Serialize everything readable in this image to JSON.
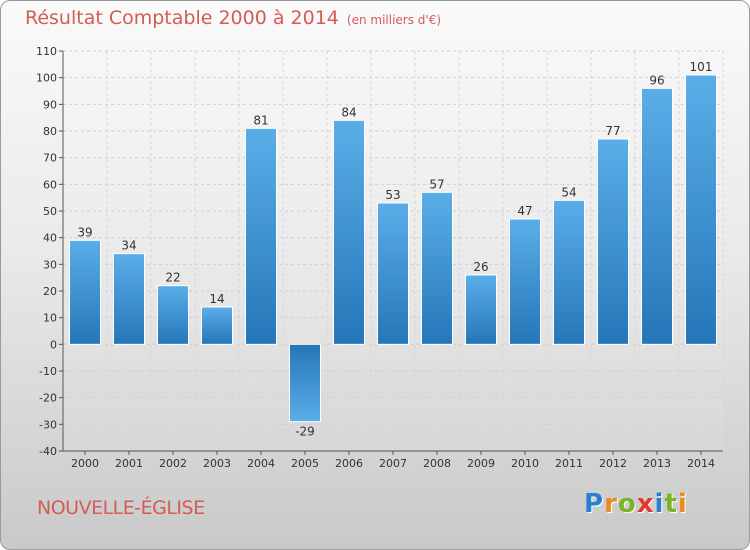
{
  "header": {
    "title": "Résultat Comptable 2000 à 2014",
    "unit_note": "(en milliers d'€)"
  },
  "footer": {
    "town": "NOUVELLE-ÉGLISE"
  },
  "logo": {
    "text": "Proxiti",
    "letters": [
      "P",
      "r",
      "o",
      "x",
      "i",
      "t",
      "i"
    ],
    "colors": [
      "#2a7fd0",
      "#ef8a1a",
      "#7ab42c",
      "#e23a2a",
      "#2a7fd0",
      "#7ab42c",
      "#ef8a1a"
    ]
  },
  "chart_data": {
    "type": "bar",
    "title": "Résultat Comptable 2000 à 2014",
    "subtitle": "(en milliers d'€)",
    "categories": [
      "2000",
      "2001",
      "2002",
      "2003",
      "2004",
      "2005",
      "2006",
      "2007",
      "2008",
      "2009",
      "2010",
      "2011",
      "2012",
      "2013",
      "2014"
    ],
    "values": [
      39,
      34,
      22,
      14,
      81,
      -29,
      84,
      53,
      57,
      26,
      47,
      54,
      77,
      96,
      101
    ],
    "ylim": [
      -40,
      110
    ],
    "yticks": [
      -40,
      -30,
      -20,
      -10,
      0,
      10,
      20,
      30,
      40,
      50,
      60,
      70,
      80,
      90,
      100,
      110
    ],
    "grid": true,
    "xlabel": "",
    "ylabel": "",
    "bar_color": "#3a93d6"
  }
}
